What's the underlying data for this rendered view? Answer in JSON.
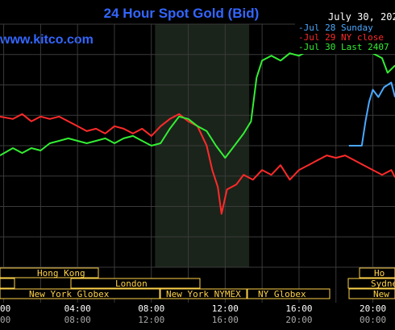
{
  "header": {
    "title": "24 Hour Spot Gold (Bid)",
    "date": "July 30, 202",
    "watermark": "www.kitco.com"
  },
  "legend": {
    "placement": "top-right",
    "items": [
      {
        "text": "-Jul 28 Sunday",
        "color": "#4aa8ff"
      },
      {
        "text": "-Jul 29 NY close",
        "color": "#ff2a2a"
      },
      {
        "text": "-Jul 30 Last 2407",
        "color": "#33ee33"
      }
    ]
  },
  "markets": {
    "row1": [
      {
        "label": "Hong Kong"
      },
      {
        "label": "Ho"
      }
    ],
    "row2": [
      {
        "label": "London"
      },
      {
        "label": "Sydne"
      }
    ],
    "row3": [
      {
        "label": "New York Globex"
      },
      {
        "label": "New York NYMEX"
      },
      {
        "label": "NY Globex"
      },
      {
        "label": "New"
      }
    ]
  },
  "colors": {
    "background": "#000000",
    "grid": "#3a3a3a",
    "title": "#3366ff",
    "market_label": "#ffd24a",
    "axis_text": "#ffffff",
    "axis_text_secondary": "#aaaaaa",
    "nymex_shade": "#1b241b"
  },
  "chart_data": {
    "type": "line",
    "title": "24 Hour Spot Gold (Bid)",
    "xlabel": "",
    "ylabel": "",
    "grid": true,
    "x_ticks_primary": [
      "00",
      "04:00",
      "08:00",
      "12:00",
      "16:00",
      "20:00"
    ],
    "x_ticks_secondary": [
      "00",
      "08:00",
      "12:00",
      "16:00",
      "20:00",
      "00:00"
    ],
    "x_tick_hours": [
      0,
      4,
      8,
      12,
      16,
      20
    ],
    "xlim": [
      -0.2,
      21.2
    ],
    "ylim": [
      0,
      100
    ],
    "nymex_hours": [
      8.2,
      13.3
    ],
    "series": [
      {
        "name": "Jul 29 NY close",
        "color": "#ff2a2a",
        "points": [
          [
            -0.2,
            62
          ],
          [
            0.5,
            61
          ],
          [
            1,
            63
          ],
          [
            1.5,
            60
          ],
          [
            2,
            62
          ],
          [
            2.5,
            61
          ],
          [
            3,
            62
          ],
          [
            3.5,
            60
          ],
          [
            4,
            58
          ],
          [
            4.5,
            56
          ],
          [
            5,
            57
          ],
          [
            5.5,
            55
          ],
          [
            6,
            58
          ],
          [
            6.5,
            57
          ],
          [
            7,
            55
          ],
          [
            7.5,
            57
          ],
          [
            8,
            54
          ],
          [
            8.5,
            58
          ],
          [
            9,
            61
          ],
          [
            9.5,
            63
          ],
          [
            10,
            60
          ],
          [
            10.5,
            58
          ],
          [
            11,
            50
          ],
          [
            11.3,
            40
          ],
          [
            11.6,
            33
          ],
          [
            11.8,
            22
          ],
          [
            12.1,
            32
          ],
          [
            12.6,
            34
          ],
          [
            13,
            38
          ],
          [
            13.5,
            36
          ],
          [
            14,
            40
          ],
          [
            14.5,
            38
          ],
          [
            15,
            42
          ],
          [
            15.5,
            36
          ],
          [
            16,
            40
          ],
          [
            16.5,
            42
          ],
          [
            17,
            44
          ],
          [
            17.5,
            46
          ],
          [
            18,
            45
          ],
          [
            18.5,
            46
          ],
          [
            19,
            44
          ],
          [
            19.5,
            42
          ],
          [
            20,
            40
          ],
          [
            20.5,
            38
          ],
          [
            21,
            40
          ],
          [
            21.2,
            37
          ]
        ]
      },
      {
        "name": "Jul 28 Sunday",
        "color": "#4aa8ff",
        "points": [
          [
            18.7,
            50
          ],
          [
            19.4,
            50
          ],
          [
            19.6,
            60
          ],
          [
            19.8,
            68
          ],
          [
            20,
            73
          ],
          [
            20.3,
            70
          ],
          [
            20.6,
            74
          ],
          [
            21,
            76
          ],
          [
            21.2,
            70
          ]
        ]
      },
      {
        "name": "Jul 30 Last 2407",
        "color": "#33ee33",
        "points": [
          [
            -0.2,
            46
          ],
          [
            0.5,
            49
          ],
          [
            1,
            47
          ],
          [
            1.5,
            49
          ],
          [
            2,
            48
          ],
          [
            2.5,
            51
          ],
          [
            3,
            52
          ],
          [
            3.5,
            53
          ],
          [
            4,
            52
          ],
          [
            4.5,
            51
          ],
          [
            5,
            52
          ],
          [
            5.5,
            53
          ],
          [
            6,
            51
          ],
          [
            6.5,
            53
          ],
          [
            7,
            54
          ],
          [
            7.5,
            52
          ],
          [
            8,
            50
          ],
          [
            8.5,
            51
          ],
          [
            9,
            57
          ],
          [
            9.5,
            62
          ],
          [
            10,
            61
          ],
          [
            10.5,
            58
          ],
          [
            11,
            56
          ],
          [
            11.5,
            50
          ],
          [
            12,
            45
          ],
          [
            12.5,
            50
          ],
          [
            13,
            55
          ],
          [
            13.4,
            60
          ],
          [
            13.7,
            78
          ],
          [
            14,
            85
          ],
          [
            14.5,
            87
          ],
          [
            15,
            85
          ],
          [
            15.5,
            88
          ],
          [
            16,
            87
          ],
          [
            16.5,
            89
          ],
          [
            17,
            92
          ],
          [
            17.5,
            90
          ],
          [
            18,
            91
          ],
          [
            18.5,
            91
          ],
          [
            19,
            90
          ],
          [
            19.5,
            89
          ],
          [
            20,
            88
          ],
          [
            20.5,
            86
          ],
          [
            20.8,
            80
          ],
          [
            21.2,
            83
          ]
        ]
      }
    ]
  }
}
